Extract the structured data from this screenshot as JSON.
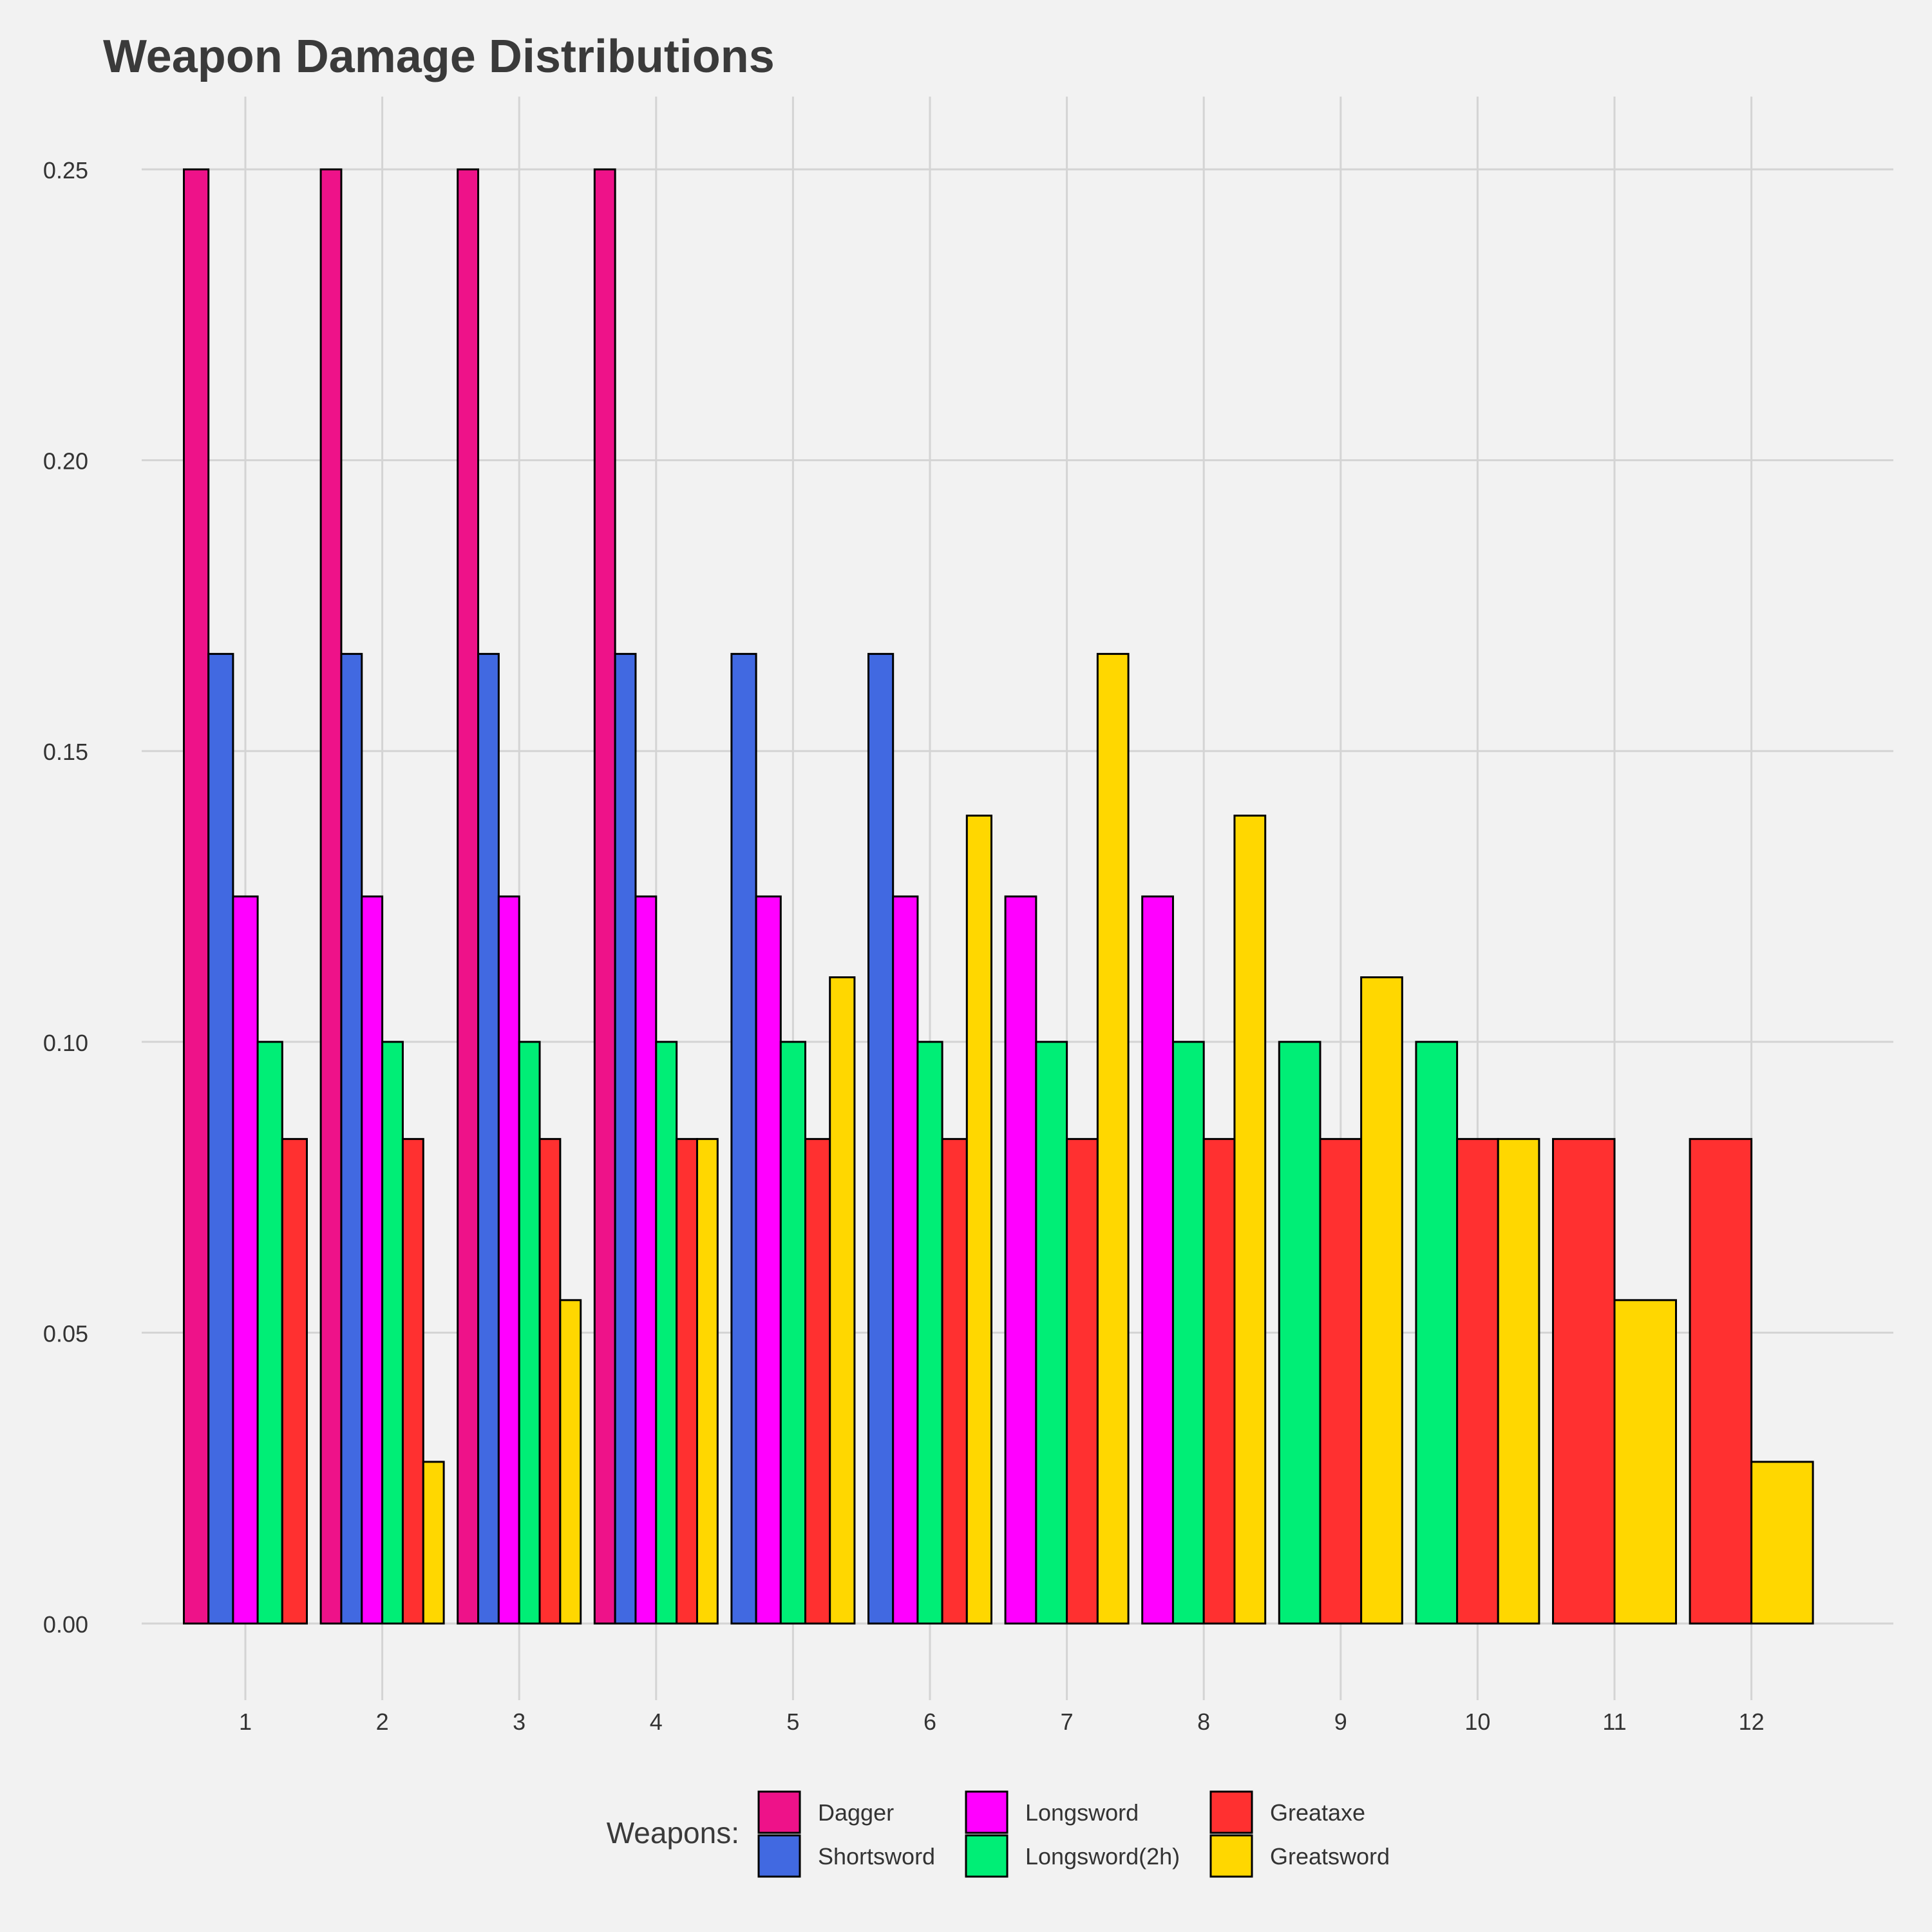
{
  "chart_data": {
    "type": "bar",
    "title": "Weapon Damage Distributions",
    "xlabel": "",
    "ylabel": "",
    "categories": [
      "1",
      "2",
      "3",
      "4",
      "5",
      "6",
      "7",
      "8",
      "9",
      "10",
      "11",
      "12"
    ],
    "ylim": [
      -0.025,
      0.262
    ],
    "yticks": [
      "0.00",
      "0.05",
      "0.10",
      "0.15",
      "0.20",
      "0.25"
    ],
    "grid": true,
    "legend_title": "Weapons:",
    "legend_position": "bottom",
    "series": [
      {
        "name": "Dagger",
        "color": "#ee1289",
        "values": [
          0.25,
          0.25,
          0.25,
          0.25,
          null,
          null,
          null,
          null,
          null,
          null,
          null,
          null
        ]
      },
      {
        "name": "Shortsword",
        "color": "#4169e1",
        "values": [
          0.1667,
          0.1667,
          0.1667,
          0.1667,
          0.1667,
          0.1667,
          null,
          null,
          null,
          null,
          null,
          null
        ]
      },
      {
        "name": "Longsword",
        "color": "#ff00ff",
        "values": [
          0.125,
          0.125,
          0.125,
          0.125,
          0.125,
          0.125,
          0.125,
          0.125,
          null,
          null,
          null,
          null
        ]
      },
      {
        "name": "Longsword(2h)",
        "color": "#00ee76",
        "values": [
          0.1,
          0.1,
          0.1,
          0.1,
          0.1,
          0.1,
          0.1,
          0.1,
          0.1,
          0.1,
          null,
          null
        ]
      },
      {
        "name": "Greataxe",
        "color": "#ff3030",
        "values": [
          0.0833,
          0.0833,
          0.0833,
          0.0833,
          0.0833,
          0.0833,
          0.0833,
          0.0833,
          0.0833,
          0.0833,
          0.0833,
          0.0833
        ]
      },
      {
        "name": "Greatsword",
        "color": "#ffd700",
        "values": [
          null,
          0.0278,
          0.0556,
          0.0833,
          0.1111,
          0.1389,
          0.1667,
          0.1389,
          0.1111,
          0.0833,
          0.0556,
          0.0278
        ]
      }
    ]
  }
}
